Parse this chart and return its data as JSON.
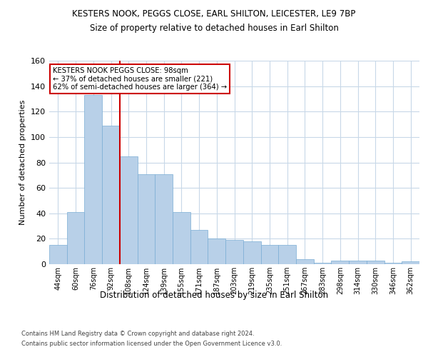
{
  "title": "KESTERS NOOK, PEGGS CLOSE, EARL SHILTON, LEICESTER, LE9 7BP",
  "subtitle": "Size of property relative to detached houses in Earl Shilton",
  "xlabel": "Distribution of detached houses by size in Earl Shilton",
  "ylabel": "Number of detached properties",
  "categories": [
    "44sqm",
    "60sqm",
    "76sqm",
    "92sqm",
    "108sqm",
    "124sqm",
    "139sqm",
    "155sqm",
    "171sqm",
    "187sqm",
    "203sqm",
    "219sqm",
    "235sqm",
    "251sqm",
    "267sqm",
    "283sqm",
    "298sqm",
    "314sqm",
    "330sqm",
    "346sqm",
    "362sqm"
  ],
  "values": [
    15,
    41,
    133,
    109,
    85,
    71,
    71,
    41,
    27,
    20,
    19,
    18,
    15,
    15,
    4,
    1,
    3,
    3,
    3,
    1,
    2
  ],
  "bar_color": "#b8d0e8",
  "bar_edge_color": "#7aadd4",
  "grid_color": "#c8d8e8",
  "background_color": "#ffffff",
  "property_line_x": 3.5,
  "annotation_text1": "KESTERS NOOK PEGGS CLOSE: 98sqm",
  "annotation_text2": "← 37% of detached houses are smaller (221)",
  "annotation_text3": "62% of semi-detached houses are larger (364) →",
  "annotation_box_color": "#ffffff",
  "annotation_box_edge": "#cc0000",
  "red_line_color": "#cc0000",
  "footer_line1": "Contains HM Land Registry data © Crown copyright and database right 2024.",
  "footer_line2": "Contains public sector information licensed under the Open Government Licence v3.0.",
  "ylim": [
    0,
    160
  ],
  "yticks": [
    0,
    20,
    40,
    60,
    80,
    100,
    120,
    140,
    160
  ]
}
